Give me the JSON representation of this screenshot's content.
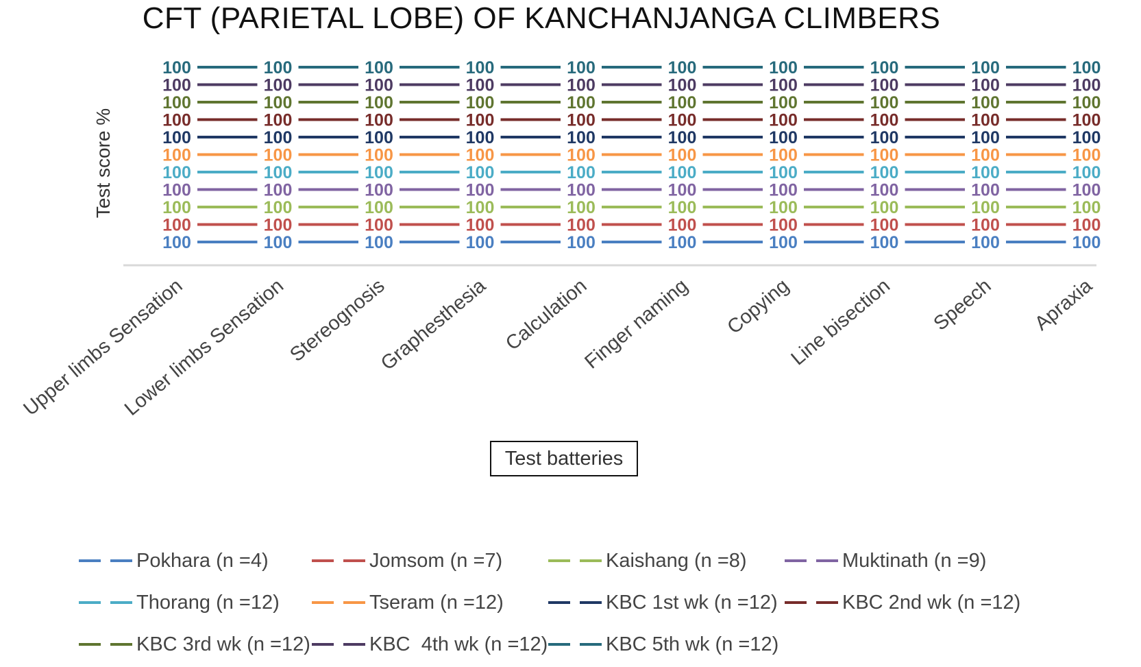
{
  "chart_data": {
    "type": "line",
    "title": "CFT (PARIETAL LOBE) OF KANCHANJANGA CLIMBERS",
    "xlabel": "Test batteries",
    "ylabel": "Test score %",
    "categories": [
      "Upper limbs Sensation",
      "Lower limbs Sensation",
      "Stereognosis",
      "Graphesthesia",
      "Calculation",
      "Finger naming",
      "Copying",
      "Line bisection",
      "Speech",
      "Apraxia"
    ],
    "series": [
      {
        "name": "Pokhara (n =4)",
        "color": "#4a7fc1",
        "values": [
          100,
          100,
          100,
          100,
          100,
          100,
          100,
          100,
          100,
          100
        ]
      },
      {
        "name": "Jomsom (n =7)",
        "color": "#c0504d",
        "values": [
          100,
          100,
          100,
          100,
          100,
          100,
          100,
          100,
          100,
          100
        ]
      },
      {
        "name": "Kaishang (n =8)",
        "color": "#9bbb59",
        "values": [
          100,
          100,
          100,
          100,
          100,
          100,
          100,
          100,
          100,
          100
        ]
      },
      {
        "name": "Muktinath (n =9)",
        "color": "#8064a2",
        "values": [
          100,
          100,
          100,
          100,
          100,
          100,
          100,
          100,
          100,
          100
        ]
      },
      {
        "name": "Thorang (n =12)",
        "color": "#4bacc6",
        "values": [
          100,
          100,
          100,
          100,
          100,
          100,
          100,
          100,
          100,
          100
        ]
      },
      {
        "name": "Tseram (n =12)",
        "color": "#f79646",
        "values": [
          100,
          100,
          100,
          100,
          100,
          100,
          100,
          100,
          100,
          100
        ]
      },
      {
        "name": "KBC 1st wk (n =12)",
        "color": "#1f3864",
        "values": [
          100,
          100,
          100,
          100,
          100,
          100,
          100,
          100,
          100,
          100
        ]
      },
      {
        "name": "KBC 2nd wk (n =12)",
        "color": "#772c2a",
        "values": [
          100,
          100,
          100,
          100,
          100,
          100,
          100,
          100,
          100,
          100
        ]
      },
      {
        "name": "KBC 3rd wk (n =12)",
        "color": "#5f7530",
        "values": [
          100,
          100,
          100,
          100,
          100,
          100,
          100,
          100,
          100,
          100
        ]
      },
      {
        "name": "KBC  4th wk (n =12)",
        "color": "#4d3b62",
        "values": [
          100,
          100,
          100,
          100,
          100,
          100,
          100,
          100,
          100,
          100
        ]
      },
      {
        "name": "KBC 5th wk (n =12)",
        "color": "#276a7c",
        "values": [
          100,
          100,
          100,
          100,
          100,
          100,
          100,
          100,
          100,
          100
        ]
      }
    ],
    "data_labels": true,
    "legend_position": "bottom",
    "grid": false
  }
}
